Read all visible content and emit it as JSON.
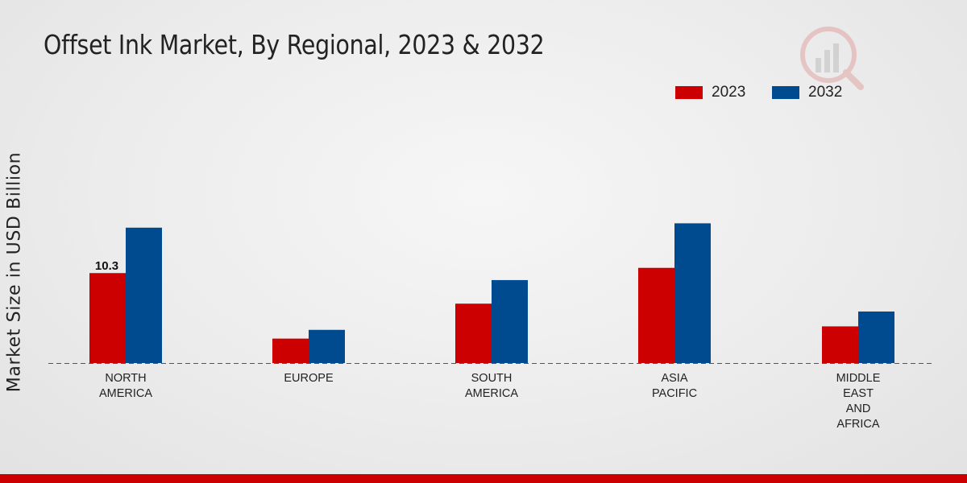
{
  "chart_data": {
    "type": "bar",
    "title": "Offset Ink Market, By Regional, 2023 & 2032",
    "xlabel": "",
    "ylabel": "Market Size in USD Billion",
    "categories": [
      "NORTH\nAMERICA",
      "EUROPE",
      "SOUTH\nAMERICA",
      "ASIA\nPACIFIC",
      "MIDDLE\nEAST\nAND\nAFRICA"
    ],
    "series": [
      {
        "name": "2023",
        "color": "#cc0000",
        "values": [
          10.3,
          2.8,
          6.8,
          10.9,
          4.2
        ]
      },
      {
        "name": "2032",
        "color": "#004a8f",
        "values": [
          15.5,
          3.8,
          9.5,
          16.0,
          5.9
        ]
      }
    ],
    "data_labels": [
      {
        "series": 0,
        "index": 0,
        "text": "10.3"
      }
    ],
    "ylim": [
      0,
      25
    ],
    "legend_position": "top-right",
    "grid": false
  },
  "footer": {
    "color": "#cc0000"
  }
}
